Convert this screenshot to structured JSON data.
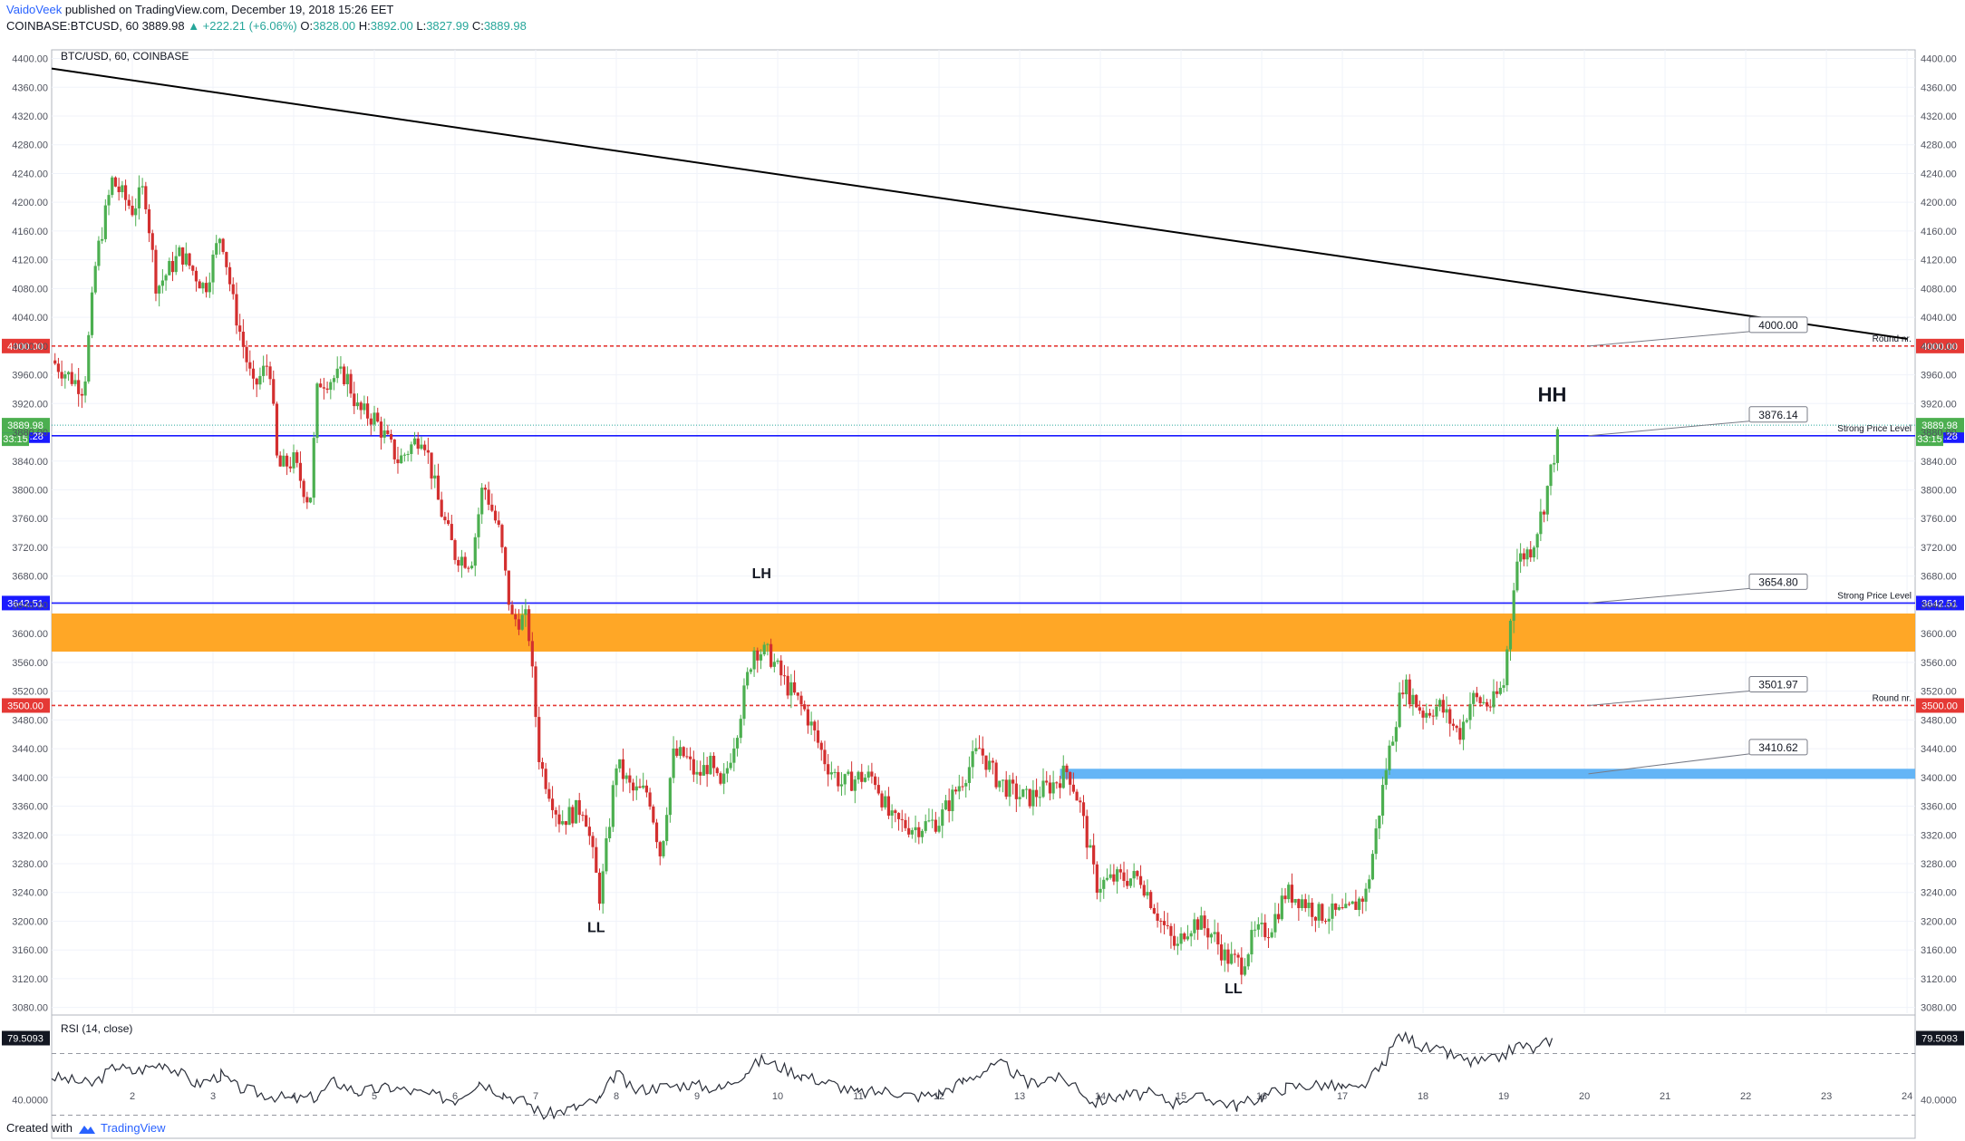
{
  "header": {
    "author": "VaidoVeek",
    "published": "published on TradingView.com, December 19, 2018 15:26 EET",
    "symbol": "COINBASE:BTCUSD, 60",
    "last": "3889.98",
    "change": "▲ +222.21 (+6.06%)",
    "o_label": "O:",
    "o_value": "3828.00",
    "h_label": "H:",
    "h_value": "3892.00",
    "l_label": "L:",
    "l_value": "3827.99",
    "c_label": "C:",
    "c_value": "3889.98"
  },
  "footer": {
    "created": "Created with",
    "brand": "TradingView"
  },
  "colors": {
    "up": "#26a69a",
    "down": "#ef5350",
    "up_body": "#4caf50",
    "down_body": "#d32f2f",
    "trendline": "#000000",
    "round_line": "#e53935",
    "strong_line": "#1a1aff",
    "orange_zone": "#ffa726",
    "blue_zone": "#64b5f6",
    "grid": "#f0f3fa"
  },
  "chart_data": {
    "type": "candlestick",
    "title": "BTC/USD, 60, COINBASE",
    "x_tick_labels": [
      "2",
      "3",
      "4",
      "5",
      "6",
      "7",
      "8",
      "9",
      "10",
      "11",
      "12",
      "13",
      "14",
      "15",
      "16",
      "17",
      "18",
      "19",
      "20",
      "21",
      "22",
      "23",
      "24"
    ],
    "x_range_days": [
      1.0,
      24.1
    ],
    "y_ticks": [
      4400,
      4360,
      4320,
      4280,
      4240,
      4200,
      4160,
      4120,
      4080,
      4040,
      4000,
      3960,
      3920,
      3880,
      3840,
      3800,
      3760,
      3720,
      3680,
      3640,
      3600,
      3560,
      3520,
      3480,
      3440,
      3400,
      3360,
      3320,
      3280,
      3240,
      3200,
      3160,
      3120,
      3080
    ],
    "y_tick_decimals": 2,
    "ylim": [
      3072,
      4412
    ],
    "price_path": [
      [
        1.0,
        3980
      ],
      [
        1.4,
        3940
      ],
      [
        1.55,
        4120
      ],
      [
        1.75,
        4230
      ],
      [
        2.0,
        4190
      ],
      [
        2.15,
        4220
      ],
      [
        2.3,
        4080
      ],
      [
        2.6,
        4130
      ],
      [
        2.9,
        4080
      ],
      [
        3.1,
        4160
      ],
      [
        3.25,
        4060
      ],
      [
        3.5,
        3940
      ],
      [
        3.7,
        3980
      ],
      [
        3.8,
        3830
      ],
      [
        4.0,
        3840
      ],
      [
        4.2,
        3780
      ],
      [
        4.3,
        3950
      ],
      [
        4.65,
        3960
      ],
      [
        4.8,
        3910
      ],
      [
        5.0,
        3900
      ],
      [
        5.3,
        3840
      ],
      [
        5.6,
        3880
      ],
      [
        5.8,
        3780
      ],
      [
        6.0,
        3710
      ],
      [
        6.2,
        3700
      ],
      [
        6.35,
        3810
      ],
      [
        6.55,
        3740
      ],
      [
        6.7,
        3620
      ],
      [
        6.9,
        3620
      ],
      [
        7.05,
        3420
      ],
      [
        7.3,
        3340
      ],
      [
        7.6,
        3360
      ],
      [
        7.8,
        3230
      ],
      [
        8.0,
        3420
      ],
      [
        8.2,
        3380
      ],
      [
        8.4,
        3380
      ],
      [
        8.55,
        3290
      ],
      [
        8.7,
        3430
      ],
      [
        8.85,
        3430
      ],
      [
        9.0,
        3400
      ],
      [
        9.15,
        3420
      ],
      [
        9.3,
        3380
      ],
      [
        9.5,
        3470
      ],
      [
        9.7,
        3580
      ],
      [
        9.9,
        3570
      ],
      [
        10.1,
        3530
      ],
      [
        10.35,
        3490
      ],
      [
        10.6,
        3420
      ],
      [
        10.8,
        3390
      ],
      [
        11.0,
        3400
      ],
      [
        11.2,
        3400
      ],
      [
        11.4,
        3340
      ],
      [
        11.7,
        3330
      ],
      [
        12.0,
        3340
      ],
      [
        12.2,
        3380
      ],
      [
        12.5,
        3440
      ],
      [
        12.7,
        3400
      ],
      [
        12.9,
        3380
      ],
      [
        13.1,
        3370
      ],
      [
        13.4,
        3390
      ],
      [
        13.6,
        3410
      ],
      [
        13.75,
        3360
      ],
      [
        13.95,
        3250
      ],
      [
        14.2,
        3260
      ],
      [
        14.5,
        3260
      ],
      [
        14.75,
        3200
      ],
      [
        14.95,
        3160
      ],
      [
        15.05,
        3190
      ],
      [
        15.2,
        3200
      ],
      [
        15.4,
        3180
      ],
      [
        15.55,
        3150
      ],
      [
        15.75,
        3140
      ],
      [
        15.9,
        3180
      ],
      [
        16.1,
        3190
      ],
      [
        16.3,
        3240
      ],
      [
        16.5,
        3230
      ],
      [
        16.7,
        3210
      ],
      [
        16.9,
        3210
      ],
      [
        17.05,
        3210
      ],
      [
        17.3,
        3240
      ],
      [
        17.55,
        3420
      ],
      [
        17.75,
        3530
      ],
      [
        18.0,
        3490
      ],
      [
        18.2,
        3500
      ],
      [
        18.45,
        3460
      ],
      [
        18.6,
        3510
      ],
      [
        18.85,
        3500
      ],
      [
        19.0,
        3530
      ],
      [
        19.15,
        3700
      ],
      [
        19.35,
        3720
      ],
      [
        19.5,
        3780
      ],
      [
        19.7,
        3890
      ]
    ],
    "trendline": {
      "x": [
        1.0,
        24.0
      ],
      "y": [
        4386,
        4010
      ]
    },
    "horizontal_levels": [
      {
        "price": 4000.0,
        "style": "dashed-red",
        "tag": "4000.00",
        "callout": "4000.00",
        "note": "Round nr."
      },
      {
        "price": 3875.28,
        "style": "solid-blue",
        "tag": "3875.28",
        "callout": "3876.14",
        "note": "Strong Price Level"
      },
      {
        "price": 3642.51,
        "style": "solid-blue",
        "tag": "3642.51",
        "callout": "3654.80",
        "note": "Strong Price Level"
      },
      {
        "price": 3500.0,
        "style": "dashed-red",
        "tag": "3500.00",
        "callout": "3501.97",
        "note": "Round nr."
      }
    ],
    "last_price": {
      "price": 3889.98,
      "tag": "3889.98",
      "countdown": "33:15"
    },
    "zones": [
      {
        "color": "orange",
        "from_x": 1.0,
        "to_x": 24.1,
        "low": 3575,
        "high": 3628
      },
      {
        "color": "blue",
        "from_x": 13.5,
        "to_x": 24.1,
        "low": 3398,
        "high": 3412,
        "callout": "3410.62"
      }
    ],
    "swing_labels": [
      {
        "text": "LH",
        "x": 9.8,
        "price": 3677
      },
      {
        "text": "LL",
        "x": 7.75,
        "price": 3185
      },
      {
        "text": "LL",
        "x": 15.65,
        "price": 3100
      },
      {
        "text": "HH",
        "x": 19.6,
        "price": 3923
      }
    ],
    "rsi": {
      "title": "RSI (14, close)",
      "current": "79.5093",
      "tick": "40.0000",
      "levels": [
        70,
        30
      ],
      "ylim": [
        15,
        95
      ],
      "anchors": [
        [
          1.0,
          55
        ],
        [
          1.5,
          50
        ],
        [
          1.8,
          62
        ],
        [
          2.0,
          58
        ],
        [
          2.4,
          64
        ],
        [
          2.8,
          50
        ],
        [
          3.1,
          56
        ],
        [
          3.3,
          48
        ],
        [
          3.6,
          44
        ],
        [
          4.0,
          40
        ],
        [
          4.3,
          42
        ],
        [
          4.5,
          52
        ],
        [
          4.8,
          45
        ],
        [
          5.2,
          48
        ],
        [
          5.6,
          44
        ],
        [
          6.0,
          40
        ],
        [
          6.3,
          52
        ],
        [
          6.6,
          44
        ],
        [
          6.9,
          38
        ],
        [
          7.1,
          30
        ],
        [
          7.5,
          35
        ],
        [
          7.8,
          40
        ],
        [
          8.0,
          58
        ],
        [
          8.2,
          46
        ],
        [
          8.5,
          48
        ],
        [
          8.9,
          50
        ],
        [
          9.3,
          47
        ],
        [
          9.6,
          58
        ],
        [
          9.8,
          66
        ],
        [
          10.0,
          62
        ],
        [
          10.3,
          56
        ],
        [
          10.7,
          50
        ],
        [
          11.0,
          44
        ],
        [
          11.4,
          46
        ],
        [
          11.7,
          42
        ],
        [
          12.0,
          44
        ],
        [
          12.3,
          52
        ],
        [
          12.6,
          60
        ],
        [
          12.8,
          63
        ],
        [
          13.1,
          50
        ],
        [
          13.4,
          55
        ],
        [
          13.7,
          50
        ],
        [
          13.9,
          38
        ],
        [
          14.2,
          42
        ],
        [
          14.6,
          44
        ],
        [
          14.9,
          38
        ],
        [
          15.1,
          42
        ],
        [
          15.4,
          40
        ],
        [
          15.7,
          36
        ],
        [
          16.0,
          42
        ],
        [
          16.3,
          48
        ],
        [
          16.7,
          50
        ],
        [
          17.0,
          48
        ],
        [
          17.2,
          46
        ],
        [
          17.5,
          62
        ],
        [
          17.7,
          82
        ],
        [
          17.9,
          78
        ],
        [
          18.0,
          74
        ],
        [
          18.3,
          70
        ],
        [
          18.6,
          64
        ],
        [
          18.9,
          66
        ],
        [
          19.2,
          76
        ],
        [
          19.4,
          72
        ],
        [
          19.6,
          80
        ]
      ]
    }
  }
}
